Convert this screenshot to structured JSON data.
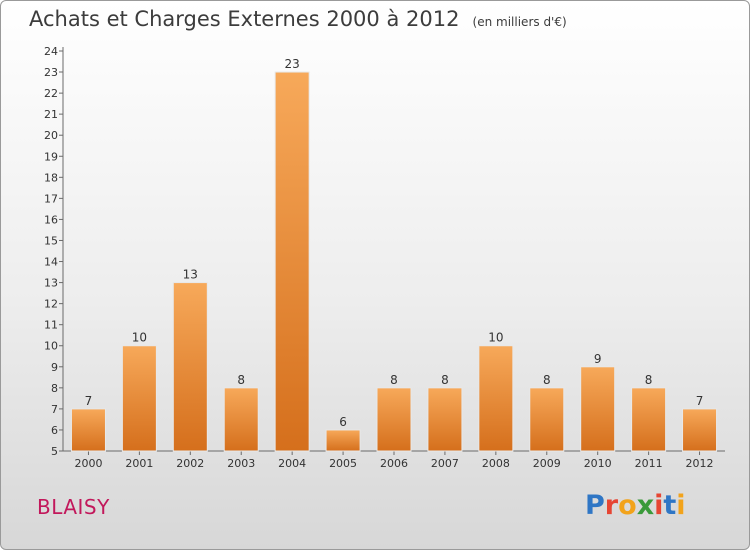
{
  "title": "Achats et Charges Externes 2000 à 2012",
  "subtitle": "(en milliers d'€)",
  "commune": "BLAISY",
  "logo": "Proxiti",
  "colors": {
    "bar_light": "#f7a95a",
    "bar_dark": "#d56f1c",
    "commune_text": "#c2185b"
  },
  "chart_data": {
    "type": "bar",
    "title": "Achats et Charges Externes 2000 à 2012",
    "subtitle": "(en milliers d'€)",
    "categories": [
      "2000",
      "2001",
      "2002",
      "2003",
      "2004",
      "2005",
      "2006",
      "2007",
      "2008",
      "2009",
      "2010",
      "2011",
      "2012"
    ],
    "values": [
      7,
      10,
      13,
      8,
      23,
      6,
      8,
      8,
      10,
      8,
      9,
      8,
      7
    ],
    "ylim": [
      5,
      24
    ],
    "yticks": [
      5,
      6,
      7,
      8,
      9,
      10,
      11,
      12,
      13,
      14,
      15,
      16,
      17,
      18,
      19,
      20,
      21,
      22,
      23,
      24
    ],
    "xlabel": "",
    "ylabel": "",
    "grid": false
  }
}
